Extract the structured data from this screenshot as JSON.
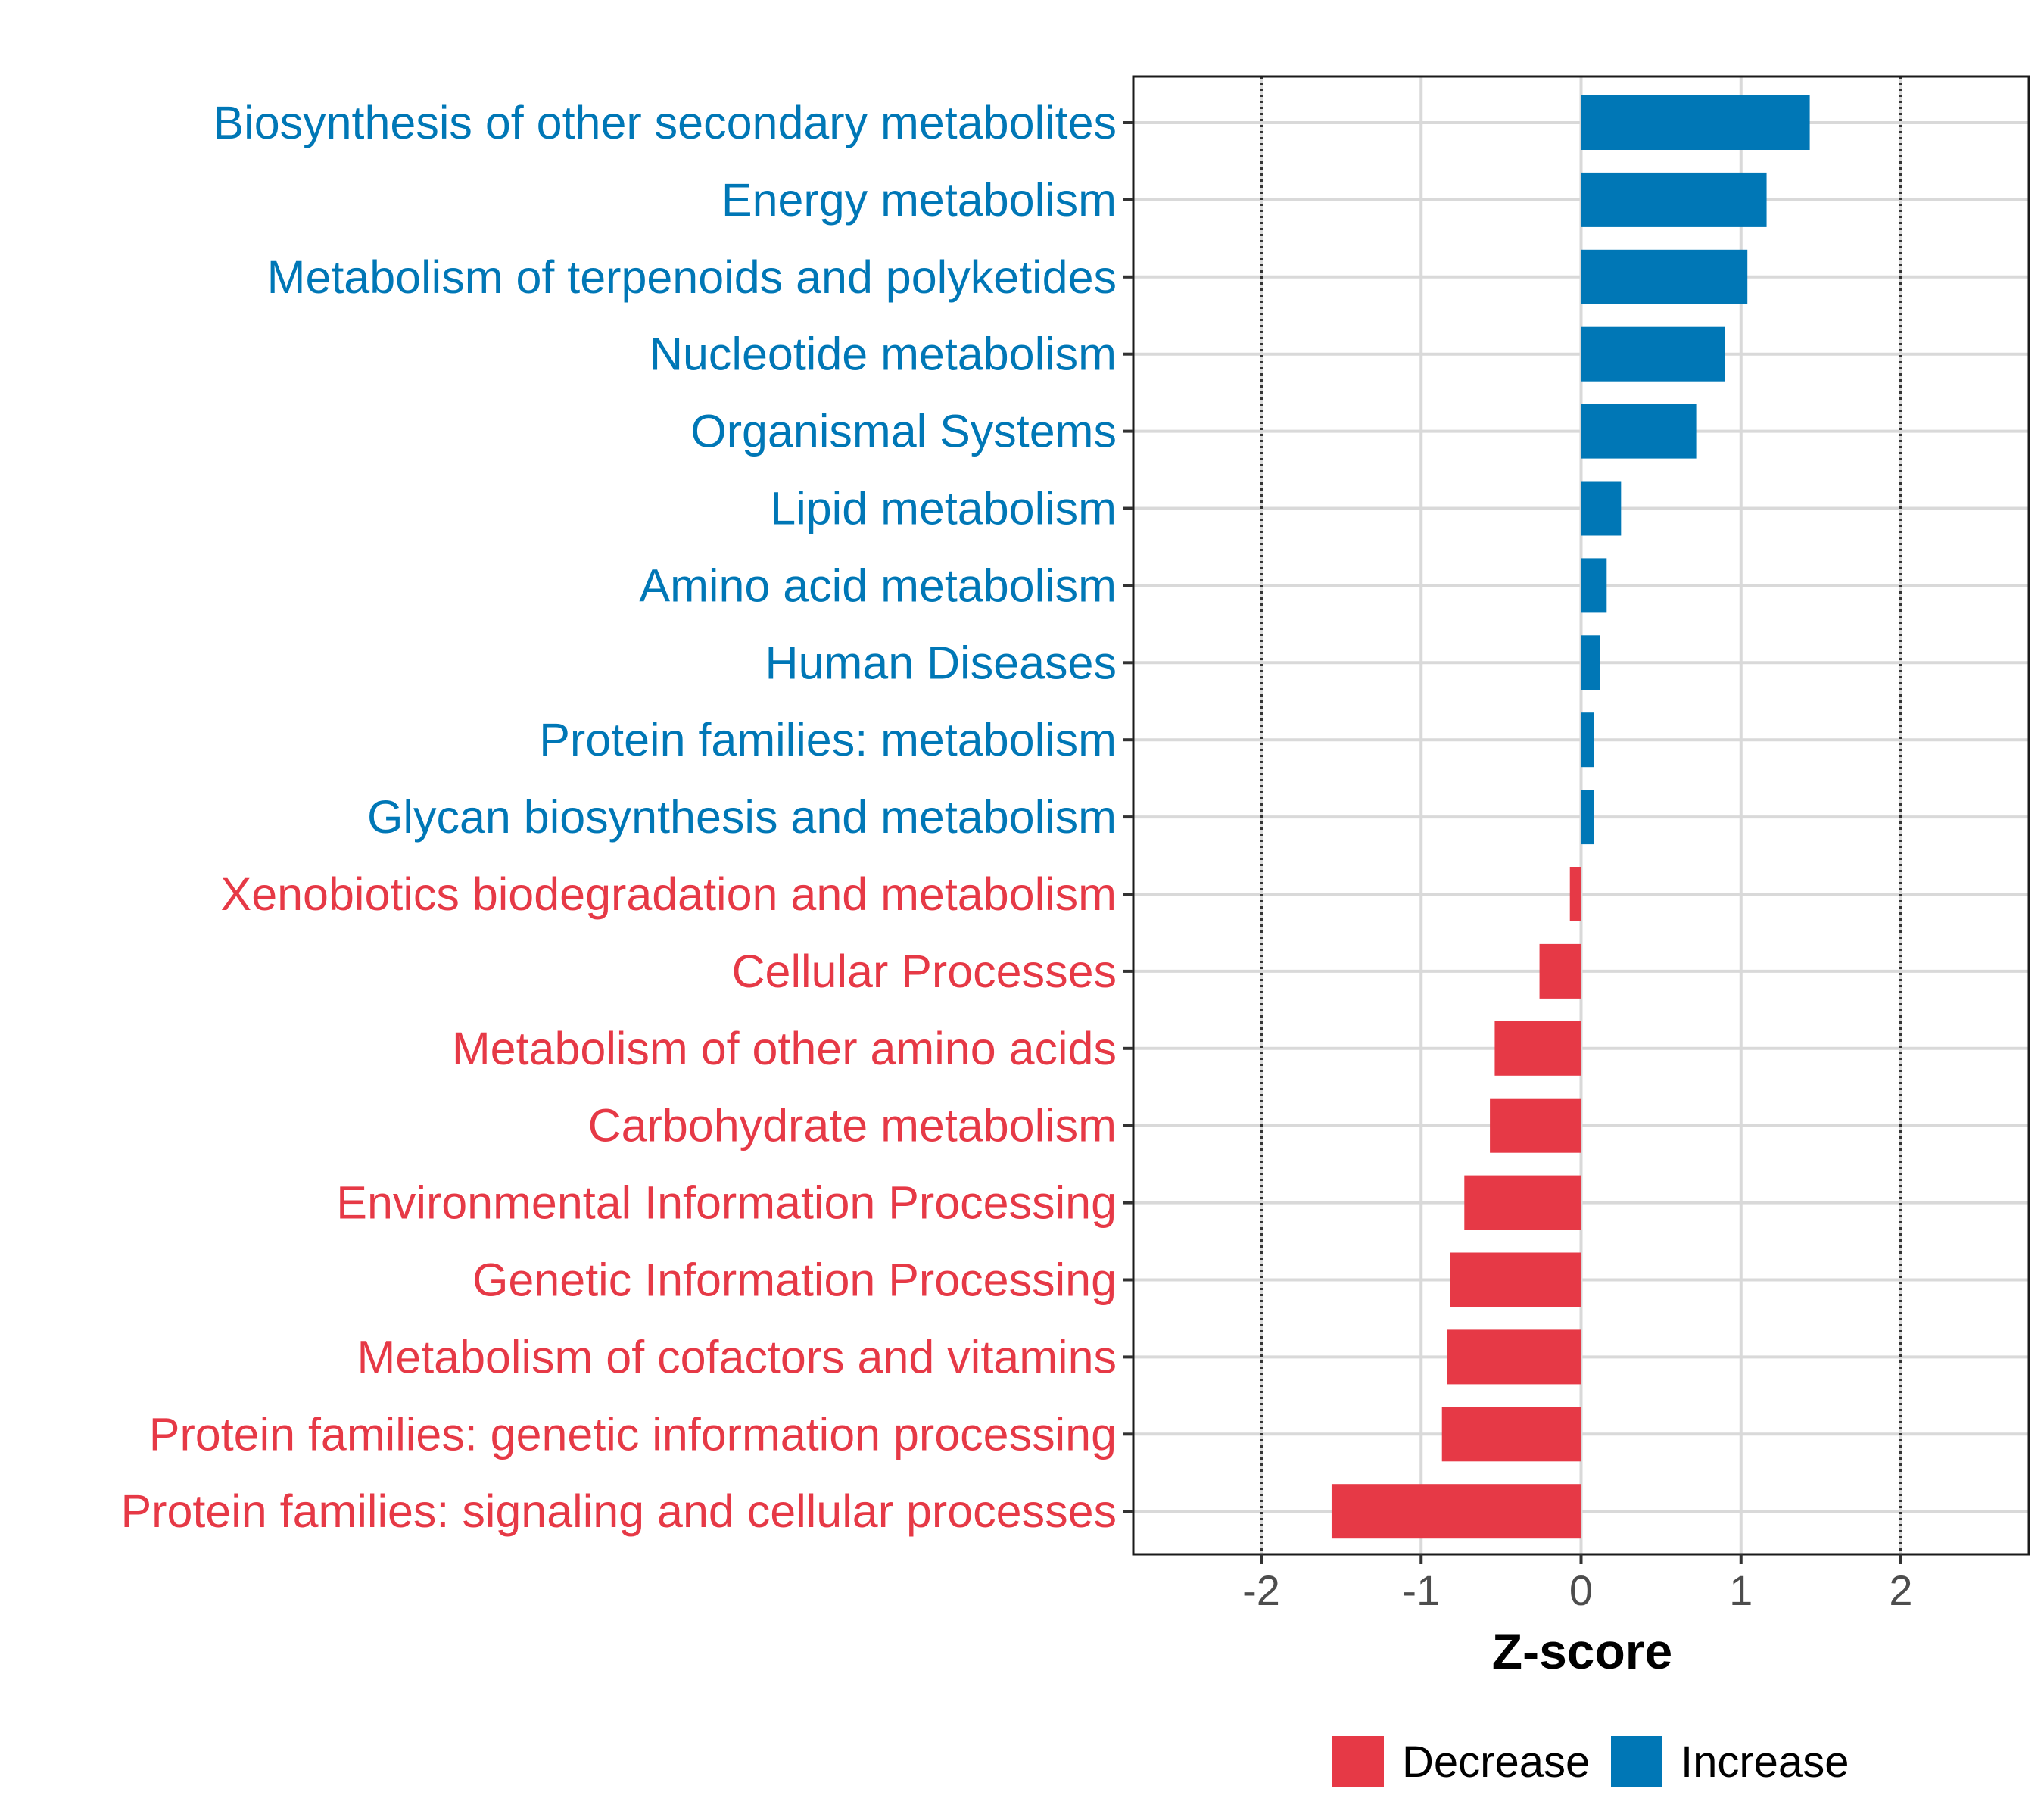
{
  "chart_data": {
    "type": "bar",
    "orientation": "horizontal",
    "xlabel": "Z-score",
    "xlim": [
      -2.8,
      2.8
    ],
    "xticks": [
      -2,
      -1,
      0,
      1,
      2
    ],
    "xtick_labels": [
      "-2",
      "-1",
      "0",
      "1",
      "2"
    ],
    "reference_lines": [
      -2,
      2
    ],
    "grid": true,
    "legend_position": "bottom",
    "colors": {
      "Decrease": "#e63946",
      "Increase": "#0077b6"
    },
    "legend": [
      {
        "label": "Decrease",
        "color": "#e63946"
      },
      {
        "label": "Increase",
        "color": "#0077b6"
      }
    ],
    "categories": [
      "Biosynthesis of other secondary metabolites",
      "Energy metabolism",
      "Metabolism of terpenoids and polyketides",
      "Nucleotide metabolism",
      "Organismal Systems",
      "Lipid metabolism",
      "Amino acid metabolism",
      "Human Diseases",
      "Protein families: metabolism",
      "Glycan biosynthesis and metabolism",
      "Xenobiotics biodegradation and metabolism",
      "Cellular Processes",
      "Metabolism of other amino acids",
      "Carbohydrate metabolism",
      "Environmental Information Processing",
      "Genetic Information Processing",
      "Metabolism of cofactors and vitamins",
      "Protein families: genetic information processing",
      "Protein families: signaling and cellular processes"
    ],
    "values": [
      1.43,
      1.16,
      1.04,
      0.9,
      0.72,
      0.25,
      0.16,
      0.12,
      0.08,
      0.08,
      -0.07,
      -0.26,
      -0.54,
      -0.57,
      -0.73,
      -0.82,
      -0.84,
      -0.87,
      -1.56
    ],
    "groups": [
      "Increase",
      "Increase",
      "Increase",
      "Increase",
      "Increase",
      "Increase",
      "Increase",
      "Increase",
      "Increase",
      "Increase",
      "Decrease",
      "Decrease",
      "Decrease",
      "Decrease",
      "Decrease",
      "Decrease",
      "Decrease",
      "Decrease",
      "Decrease"
    ]
  }
}
